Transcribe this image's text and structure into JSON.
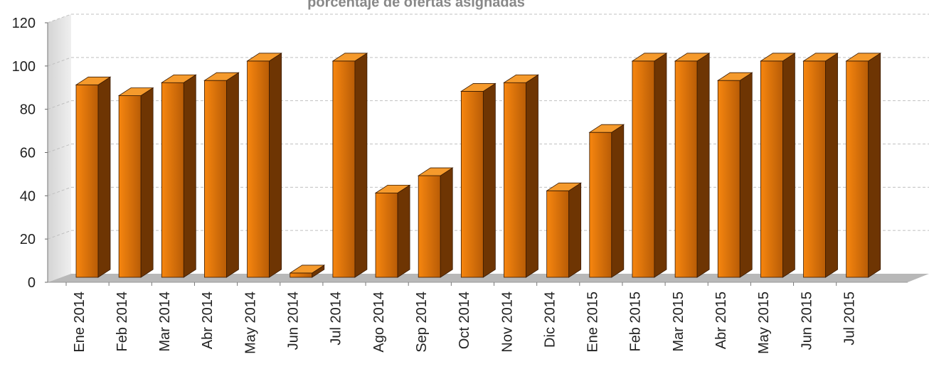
{
  "chart_data": {
    "type": "bar",
    "title": "porcentaje de ofertas asignadas",
    "xlabel": "",
    "ylabel": "",
    "ylim": [
      0,
      120
    ],
    "yticks": [
      "0",
      "20",
      "40",
      "60",
      "80",
      "100",
      "120"
    ],
    "grid": true,
    "style": "3d",
    "categories": [
      "Ene 2014",
      "Feb 2014",
      "Mar 2014",
      "Abr 2014",
      "May 2014",
      "Jun 2014",
      "Jul 2014",
      "Ago 2014",
      "Sep 2014",
      "Oct 2014",
      "Nov 2014",
      "Dic 2014",
      "Ene 2015",
      "Feb 2015",
      "Mar 2015",
      "Abr 2015",
      "May 2015",
      "Jun 2015",
      "Jul 2015"
    ],
    "values": [
      89,
      84,
      90,
      91,
      100,
      2,
      100,
      39,
      47,
      86,
      90,
      40,
      67,
      100,
      100,
      91,
      100,
      100,
      100
    ],
    "colors": {
      "bar_front_light": "#f7860f",
      "bar_front_dark": "#b85c06",
      "bar_top": "#f59a2c",
      "bar_side": "#6e3503",
      "floor": "#b8b8b8",
      "wall": "#e3e3e3",
      "grid": "#c0c0c0",
      "text": "#222222",
      "title": "#888888"
    }
  }
}
